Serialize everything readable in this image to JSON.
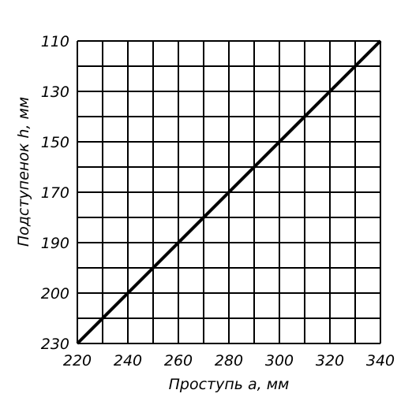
{
  "chart_data": {
    "type": "line",
    "xlabel": "Проступь a, мм",
    "ylabel": "Подступенок h, мм",
    "xlim": [
      220,
      340
    ],
    "ylim": [
      110,
      230
    ],
    "y_inverted": true,
    "grid": true,
    "x_ticks": [
      "220",
      "240",
      "260",
      "280",
      "300",
      "320",
      "340"
    ],
    "y_ticks": [
      "110",
      "130",
      "150",
      "170",
      "190",
      "200",
      "230"
    ],
    "series": [
      {
        "x": [
          220,
          340
        ],
        "y": [
          230,
          110
        ]
      }
    ]
  }
}
